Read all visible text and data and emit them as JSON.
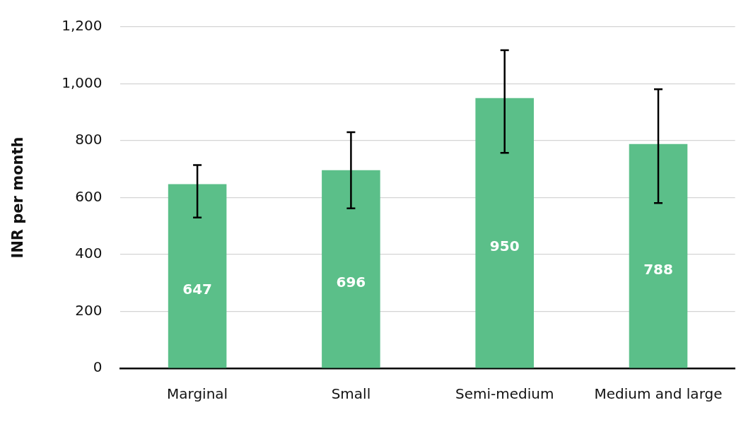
{
  "chart_data": {
    "type": "bar",
    "ylabel": "INR per month",
    "categories": [
      "Marginal",
      "Small",
      "Semi-medium",
      "Medium and large"
    ],
    "values": [
      647,
      696,
      950,
      788
    ],
    "errors": [
      [
        530,
        714
      ],
      [
        562,
        830
      ],
      [
        757,
        1118
      ],
      [
        581,
        981
      ]
    ],
    "color": "#5bbf89",
    "data_labels": true,
    "ylim": [
      0,
      1200
    ],
    "yticks": [
      0,
      {
        "value": 200,
        "label": "200"
      },
      {
        "value": 400,
        "label": "400"
      },
      {
        "value": 600,
        "label": "600"
      },
      {
        "value": 800,
        "label": "800"
      },
      {
        "value": 1000,
        "label": "1,000"
      },
      {
        "value": 1200,
        "label": "1,200"
      }
    ],
    "grid": "y",
    "legend": false
  }
}
